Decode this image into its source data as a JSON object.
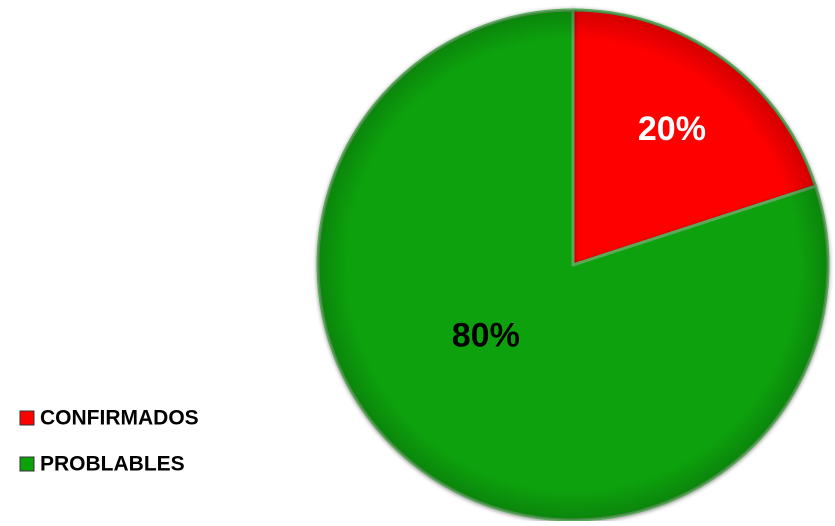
{
  "chart_data": {
    "type": "pie",
    "categories": [
      "CONFIRMADOS",
      "PROBLABLES"
    ],
    "values": [
      20,
      80
    ],
    "data_labels": [
      "20%",
      "80%"
    ],
    "colors": [
      "#ff0000",
      "#09a209"
    ],
    "label_colors": [
      "#ffffff",
      "#000000"
    ],
    "start_angle_deg": 0,
    "direction": "clockwise",
    "legend": {
      "placement": "bottom-left",
      "entries": [
        "CONFIRMADOS",
        "PROBLABLES"
      ]
    }
  }
}
